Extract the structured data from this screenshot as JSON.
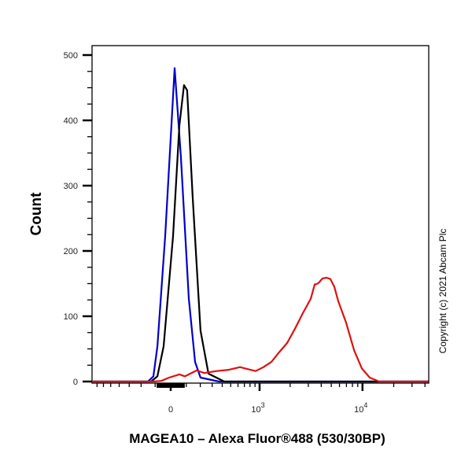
{
  "chart_data": {
    "type": "line",
    "title": "",
    "xlabel": "MAGEA10 – Alexa Fluor®488 (530/30BP)",
    "ylabel": "Count",
    "x_scale": "biexponential",
    "xlim": [
      -790,
      43000
    ],
    "ylim": [
      0,
      500
    ],
    "y_ticks": [
      0,
      100,
      200,
      300,
      400,
      500
    ],
    "y_tick_labels": [
      "0",
      "100",
      "200",
      "300",
      "400",
      "500"
    ],
    "x_ticks": [
      0,
      1000,
      10000
    ],
    "x_tick_labels": [
      {
        "base": "0",
        "exp": ""
      },
      {
        "base": "10",
        "exp": "3"
      },
      {
        "base": "10",
        "exp": "4"
      }
    ],
    "grid": false,
    "legend": "none",
    "copyright": "Copyright (c) 2021 Abcam Plc",
    "series": [
      {
        "color": "#0000cc",
        "x": [
          -790,
          -150,
          -112,
          -85,
          -35,
          25,
          65,
          117,
          161,
          202,
          365,
          43000
        ],
        "y": [
          0,
          0,
          8,
          54,
          223,
          480,
          343,
          127,
          30,
          6,
          0,
          0
        ]
      },
      {
        "color": "#000000",
        "x": [
          -790,
          -128,
          -85,
          -45,
          15,
          55,
          85,
          106,
          144,
          202,
          267,
          423,
          43000
        ],
        "y": [
          0,
          0,
          8,
          54,
          223,
          392,
          454,
          446,
          283,
          78,
          12,
          0,
          0
        ]
      },
      {
        "color": "#e01010",
        "x": [
          -790,
          -112,
          -60,
          -10,
          55,
          91,
          173,
          233,
          340,
          474,
          630,
          758,
          912,
          1093,
          1310,
          1566,
          1869,
          2230,
          2660,
          3170,
          3460,
          3580,
          3770,
          4120,
          4490,
          4900,
          5350,
          5840,
          6960,
          8290,
          9860,
          11750,
          14490,
          43000
        ],
        "y": [
          0,
          0,
          1,
          6,
          11,
          8,
          17,
          13,
          16,
          18,
          22,
          19,
          16,
          22,
          30,
          45,
          59,
          81,
          105,
          127,
          149,
          149,
          151,
          158,
          159,
          157,
          145,
          123,
          90,
          48,
          20,
          6,
          0,
          0
        ]
      }
    ]
  }
}
